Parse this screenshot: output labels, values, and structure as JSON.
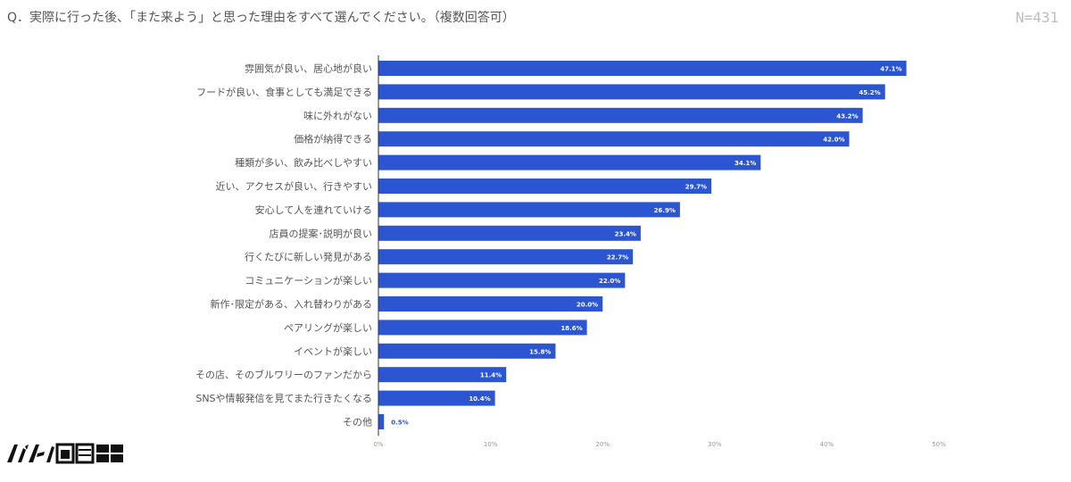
{
  "header": {
    "question": "Q．実際に行った後、「また来よう」と思った理由をすべて選んでください。（複数回答可）",
    "n_label": "N=431"
  },
  "brand": {
    "logo_text": "イゾルム商會"
  },
  "colors": {
    "bar": "#2b55d1",
    "label_text": "#555555",
    "axis_line": "#333333",
    "tick_text": "#999999",
    "value_text": "#ffffff",
    "value_text_small": "#2b55d1"
  },
  "chart_data": {
    "type": "bar",
    "orientation": "horizontal",
    "categories": [
      "雰囲気が良い、居心地が良い",
      "フードが良い、食事としても満足できる",
      "味に外れがない",
      "価格が納得できる",
      "種類が多い、飲み比べしやすい",
      "近い、アクセスが良い、行きやすい",
      "安心して人を連れていける",
      "店員の提案･説明が良い",
      "行くたびに新しい発見がある",
      "コミュニケーションが楽しい",
      "新作･限定がある、入れ替わりがある",
      "ペアリングが楽しい",
      "イベントが楽しい",
      "その店、そのブルワリーのファンだから",
      "SNSや情報発信を見てまた行きたくなる",
      "その他"
    ],
    "values": [
      47.1,
      45.2,
      43.2,
      42.0,
      34.1,
      29.7,
      26.9,
      23.4,
      22.7,
      22.0,
      20.0,
      18.6,
      15.8,
      11.4,
      10.4,
      0.5
    ],
    "value_labels": [
      "47.1%",
      "45.2%",
      "43.2%",
      "42.0%",
      "34.1%",
      "29.7%",
      "26.9%",
      "23.4%",
      "22.7%",
      "22.0%",
      "20.0%",
      "18.6%",
      "15.8%",
      "11.4%",
      "10.4%",
      "0.5%"
    ],
    "xlim": [
      0,
      50
    ],
    "xticks": [
      0,
      10,
      20,
      30,
      40,
      50
    ],
    "xtick_labels": [
      "0%",
      "10%",
      "20%",
      "30%",
      "40%",
      "50%"
    ],
    "grid": false,
    "legend": "none"
  }
}
